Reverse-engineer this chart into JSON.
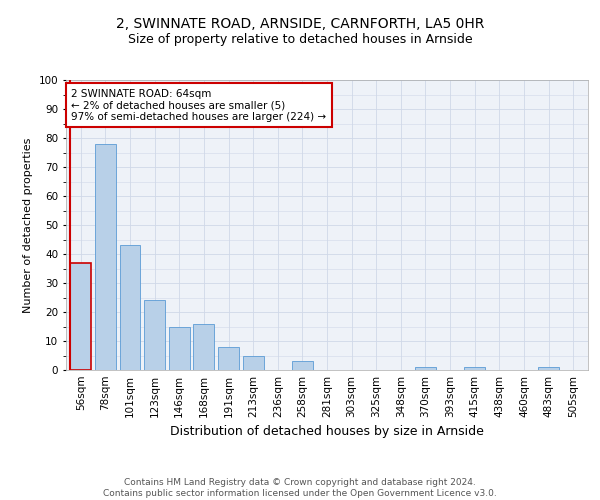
{
  "title1": "2, SWINNATE ROAD, ARNSIDE, CARNFORTH, LA5 0HR",
  "title2": "Size of property relative to detached houses in Arnside",
  "xlabel": "Distribution of detached houses by size in Arnside",
  "ylabel": "Number of detached properties",
  "footnote": "Contains HM Land Registry data © Crown copyright and database right 2024.\nContains public sector information licensed under the Open Government Licence v3.0.",
  "categories": [
    "56sqm",
    "78sqm",
    "101sqm",
    "123sqm",
    "146sqm",
    "168sqm",
    "191sqm",
    "213sqm",
    "236sqm",
    "258sqm",
    "281sqm",
    "303sqm",
    "325sqm",
    "348sqm",
    "370sqm",
    "393sqm",
    "415sqm",
    "438sqm",
    "460sqm",
    "483sqm",
    "505sqm"
  ],
  "values": [
    37,
    78,
    43,
    24,
    15,
    16,
    8,
    5,
    0,
    3,
    0,
    0,
    0,
    0,
    1,
    0,
    1,
    0,
    0,
    1,
    0
  ],
  "bar_color": "#b8d0e8",
  "bar_edge_color": "#5b9bd5",
  "highlight_bar_index": 0,
  "highlight_color": "#cc0000",
  "annotation_box_text": "2 SWINNATE ROAD: 64sqm\n← 2% of detached houses are smaller (5)\n97% of semi-detached houses are larger (224) →",
  "annotation_box_color": "#cc0000",
  "ylim": [
    0,
    100
  ],
  "yticks": [
    0,
    10,
    20,
    30,
    40,
    50,
    60,
    70,
    80,
    90,
    100
  ],
  "grid_color": "#d0d8e8",
  "background_color": "#eef2f8",
  "title1_fontsize": 10,
  "title2_fontsize": 9,
  "xlabel_fontsize": 9,
  "ylabel_fontsize": 8,
  "tick_fontsize": 7.5,
  "annot_fontsize": 7.5,
  "footnote_fontsize": 6.5
}
